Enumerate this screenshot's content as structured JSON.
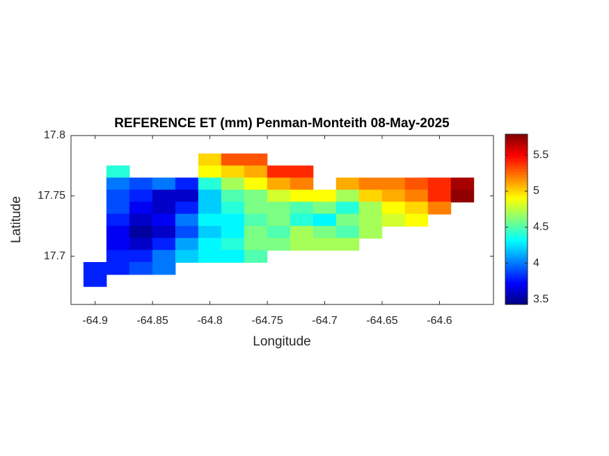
{
  "chart_data": {
    "type": "heatmap",
    "title": "REFERENCE ET (mm) Penman-Monteith 08-May-2025",
    "xlabel": "Longitude",
    "ylabel": "Latitude",
    "x": [
      -64.9,
      -64.88,
      -64.86,
      -64.84,
      -64.82,
      -64.8,
      -64.78,
      -64.76,
      -64.74,
      -64.72,
      -64.7,
      -64.68,
      -64.66,
      -64.64,
      -64.62,
      -64.6,
      -64.58,
      -64.56
    ],
    "y": [
      17.78,
      17.77,
      17.76,
      17.75,
      17.74,
      17.73,
      17.72,
      17.71,
      17.7,
      17.69,
      17.68
    ],
    "values": [
      [
        null,
        null,
        null,
        null,
        null,
        5.0,
        5.3,
        5.3,
        null,
        null,
        null,
        null,
        null,
        null,
        null,
        null,
        null,
        null
      ],
      [
        null,
        4.4,
        null,
        null,
        null,
        4.9,
        5.0,
        5.1,
        5.4,
        5.4,
        null,
        null,
        null,
        null,
        null,
        null,
        null,
        null
      ],
      [
        null,
        4.0,
        3.9,
        4.0,
        3.8,
        4.4,
        4.7,
        4.9,
        5.1,
        5.2,
        null,
        5.1,
        5.2,
        5.2,
        5.3,
        5.4,
        5.7,
        null
      ],
      [
        null,
        3.9,
        3.8,
        3.6,
        3.6,
        4.2,
        4.5,
        4.6,
        4.8,
        4.9,
        4.9,
        4.7,
        5.0,
        5.1,
        5.2,
        5.4,
        5.75,
        null
      ],
      [
        null,
        3.9,
        3.7,
        3.6,
        3.8,
        4.2,
        4.4,
        4.6,
        4.6,
        4.5,
        4.6,
        4.4,
        4.7,
        4.9,
        5.0,
        5.2,
        null,
        null
      ],
      [
        null,
        3.8,
        3.6,
        3.7,
        4.0,
        4.3,
        4.3,
        4.5,
        4.6,
        4.4,
        4.3,
        4.6,
        4.7,
        4.8,
        4.9,
        null,
        null,
        null
      ],
      [
        null,
        3.7,
        3.5,
        3.6,
        3.9,
        4.2,
        4.3,
        4.6,
        4.5,
        4.7,
        4.6,
        4.5,
        4.7,
        null,
        null,
        null,
        null,
        null
      ],
      [
        null,
        3.7,
        3.6,
        3.8,
        4.1,
        4.3,
        4.4,
        4.6,
        4.6,
        4.7,
        4.7,
        4.7,
        null,
        null,
        null,
        null,
        null,
        null
      ],
      [
        null,
        3.8,
        3.8,
        4.0,
        4.2,
        4.3,
        4.3,
        4.5,
        null,
        null,
        null,
        null,
        null,
        null,
        null,
        null,
        null,
        null
      ],
      [
        3.8,
        3.8,
        3.9,
        4.0,
        null,
        null,
        null,
        null,
        null,
        null,
        null,
        null,
        null,
        null,
        null,
        null,
        null,
        null
      ],
      [
        3.8,
        null,
        null,
        null,
        null,
        null,
        null,
        null,
        null,
        null,
        null,
        null,
        null,
        null,
        null,
        null,
        null,
        null
      ]
    ],
    "xlim": [
      -64.921,
      -64.553
    ],
    "xticks": [
      -64.9,
      -64.85,
      -64.8,
      -64.75,
      -64.7,
      -64.65,
      -64.6
    ],
    "ylim": [
      17.66,
      17.8
    ],
    "yticks": [
      17.7,
      17.75,
      17.8
    ],
    "colormap": "jet",
    "clim": [
      3.43,
      5.79
    ],
    "cticks": [
      3.5,
      4,
      4.5,
      5,
      5.5
    ]
  }
}
